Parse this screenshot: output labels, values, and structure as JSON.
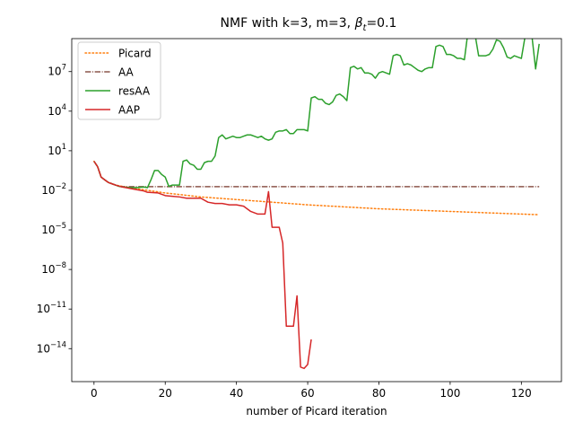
{
  "chart_data": {
    "type": "line",
    "title": "NMF with k=3, m=3,  βt=0.1",
    "title_parts": {
      "prefix": "NMF with k=3, m=3,  ",
      "symbol": "β",
      "subscript": "t",
      "suffix": "=0.1"
    },
    "xlabel": "number of Picard iteration",
    "ylabel": "",
    "xlim": [
      -6.25,
      131.25
    ],
    "ylim_exponent": [
      -16.5,
      9.5
    ],
    "yscale": "log",
    "xticks": [
      0,
      20,
      40,
      60,
      80,
      100,
      120
    ],
    "xtick_labels": [
      "0",
      "20",
      "40",
      "60",
      "80",
      "100",
      "120"
    ],
    "yticks_exponent": [
      -14,
      -11,
      -8,
      -5,
      -2,
      1,
      4,
      7
    ],
    "ytick_labels": [
      {
        "base": "10",
        "exp": "−14"
      },
      {
        "base": "10",
        "exp": "−11"
      },
      {
        "base": "10",
        "exp": "−8"
      },
      {
        "base": "10",
        "exp": "−5"
      },
      {
        "base": "10",
        "exp": "−2"
      },
      {
        "base": "10",
        "exp": "1"
      },
      {
        "base": "10",
        "exp": "4"
      },
      {
        "base": "10",
        "exp": "7"
      }
    ],
    "legend_position": "upper-left",
    "grid": false,
    "series": [
      {
        "name": "Picard",
        "color": "#ff7f0e",
        "style": "dotted",
        "log10_points": [
          [
            0,
            0.2
          ],
          [
            1,
            -0.2
          ],
          [
            2,
            -1.0
          ],
          [
            3,
            -1.2
          ],
          [
            4,
            -1.4
          ],
          [
            5,
            -1.5
          ],
          [
            6,
            -1.6
          ],
          [
            8,
            -1.7
          ],
          [
            10,
            -1.8
          ],
          [
            15,
            -2.0
          ],
          [
            20,
            -2.2
          ],
          [
            30,
            -2.5
          ],
          [
            40,
            -2.7
          ],
          [
            50,
            -2.9
          ],
          [
            60,
            -3.1
          ],
          [
            70,
            -3.25
          ],
          [
            80,
            -3.4
          ],
          [
            90,
            -3.5
          ],
          [
            100,
            -3.6
          ],
          [
            110,
            -3.7
          ],
          [
            120,
            -3.8
          ],
          [
            125,
            -3.85
          ]
        ]
      },
      {
        "name": "AA",
        "color": "#8c564b",
        "style": "dashdot",
        "log10_points": [
          [
            0,
            0.2
          ],
          [
            1,
            -0.2
          ],
          [
            2,
            -1.0
          ],
          [
            3,
            -1.2
          ],
          [
            4,
            -1.4
          ],
          [
            5,
            -1.5
          ],
          [
            6,
            -1.6
          ],
          [
            7,
            -1.7
          ],
          [
            8,
            -1.72
          ],
          [
            10,
            -1.72
          ],
          [
            20,
            -1.72
          ],
          [
            40,
            -1.72
          ],
          [
            60,
            -1.72
          ],
          [
            80,
            -1.72
          ],
          [
            100,
            -1.72
          ],
          [
            120,
            -1.72
          ],
          [
            125,
            -1.72
          ]
        ]
      },
      {
        "name": "resAA",
        "color": "#2ca02c",
        "style": "solid",
        "log10_points": [
          [
            0,
            0.2
          ],
          [
            1,
            -0.2
          ],
          [
            2,
            -1.0
          ],
          [
            3,
            -1.2
          ],
          [
            4,
            -1.4
          ],
          [
            5,
            -1.5
          ],
          [
            6,
            -1.6
          ],
          [
            7,
            -1.7
          ],
          [
            8,
            -1.75
          ],
          [
            10,
            -1.8
          ],
          [
            12,
            -1.8
          ],
          [
            14,
            -1.75
          ],
          [
            15,
            -1.8
          ],
          [
            16,
            -1.2
          ],
          [
            17,
            -0.5
          ],
          [
            18,
            -0.5
          ],
          [
            19,
            -0.8
          ],
          [
            20,
            -1.0
          ],
          [
            21,
            -1.7
          ],
          [
            22,
            -1.6
          ],
          [
            24,
            -1.6
          ],
          [
            25,
            0.2
          ],
          [
            26,
            0.3
          ],
          [
            27,
            0.0
          ],
          [
            28,
            -0.1
          ],
          [
            29,
            -0.4
          ],
          [
            30,
            -0.4
          ],
          [
            31,
            0.1
          ],
          [
            32,
            0.2
          ],
          [
            33,
            0.2
          ],
          [
            34,
            0.6
          ],
          [
            35,
            2.0
          ],
          [
            36,
            2.2
          ],
          [
            37,
            1.9
          ],
          [
            38,
            2.0
          ],
          [
            39,
            2.1
          ],
          [
            40,
            2.0
          ],
          [
            41,
            2.0
          ],
          [
            42,
            2.1
          ],
          [
            43,
            2.2
          ],
          [
            44,
            2.2
          ],
          [
            45,
            2.1
          ],
          [
            46,
            2.0
          ],
          [
            47,
            2.1
          ],
          [
            48,
            1.9
          ],
          [
            49,
            1.8
          ],
          [
            50,
            1.9
          ],
          [
            51,
            2.4
          ],
          [
            52,
            2.5
          ],
          [
            53,
            2.5
          ],
          [
            54,
            2.6
          ],
          [
            55,
            2.3
          ],
          [
            56,
            2.3
          ],
          [
            57,
            2.6
          ],
          [
            58,
            2.6
          ],
          [
            59,
            2.6
          ],
          [
            60,
            2.5
          ],
          [
            61,
            5.0
          ],
          [
            62,
            5.1
          ],
          [
            63,
            4.9
          ],
          [
            64,
            4.9
          ],
          [
            65,
            4.6
          ],
          [
            66,
            4.5
          ],
          [
            67,
            4.7
          ],
          [
            68,
            5.2
          ],
          [
            69,
            5.3
          ],
          [
            70,
            5.1
          ],
          [
            71,
            4.8
          ],
          [
            72,
            7.3
          ],
          [
            73,
            7.4
          ],
          [
            74,
            7.2
          ],
          [
            75,
            7.3
          ],
          [
            76,
            6.9
          ],
          [
            77,
            6.9
          ],
          [
            78,
            6.8
          ],
          [
            79,
            6.5
          ],
          [
            80,
            6.9
          ],
          [
            81,
            7.0
          ],
          [
            82,
            6.9
          ],
          [
            83,
            6.8
          ],
          [
            84,
            8.2
          ],
          [
            85,
            8.3
          ],
          [
            86,
            8.2
          ],
          [
            87,
            7.5
          ],
          [
            88,
            7.6
          ],
          [
            89,
            7.5
          ],
          [
            90,
            7.3
          ],
          [
            91,
            7.1
          ],
          [
            92,
            7.0
          ],
          [
            93,
            7.2
          ],
          [
            94,
            7.3
          ],
          [
            95,
            7.3
          ],
          [
            96,
            8.9
          ],
          [
            97,
            9.0
          ],
          [
            98,
            8.9
          ],
          [
            99,
            8.3
          ],
          [
            100,
            8.3
          ],
          [
            101,
            8.2
          ],
          [
            102,
            8.0
          ],
          [
            103,
            8.0
          ],
          [
            104,
            7.9
          ],
          [
            105,
            10.0
          ],
          [
            106,
            10.1
          ],
          [
            107,
            9.8
          ],
          [
            108,
            8.2
          ],
          [
            109,
            8.2
          ],
          [
            110,
            8.2
          ],
          [
            111,
            8.3
          ],
          [
            112,
            8.7
          ],
          [
            113,
            9.4
          ],
          [
            114,
            9.3
          ],
          [
            115,
            8.8
          ],
          [
            116,
            8.1
          ],
          [
            117,
            8.0
          ],
          [
            118,
            8.2
          ],
          [
            119,
            8.1
          ],
          [
            120,
            8.0
          ],
          [
            121,
            9.6
          ],
          [
            122,
            9.7
          ],
          [
            123,
            9.6
          ],
          [
            124,
            7.2
          ],
          [
            125,
            9.1
          ]
        ]
      },
      {
        "name": "AAP",
        "color": "#d62728",
        "style": "solid",
        "log10_points": [
          [
            0,
            0.2
          ],
          [
            1,
            -0.2
          ],
          [
            2,
            -1.0
          ],
          [
            3,
            -1.2
          ],
          [
            4,
            -1.4
          ],
          [
            5,
            -1.5
          ],
          [
            6,
            -1.6
          ],
          [
            8,
            -1.75
          ],
          [
            10,
            -1.85
          ],
          [
            12,
            -1.95
          ],
          [
            14,
            -2.05
          ],
          [
            15,
            -2.15
          ],
          [
            18,
            -2.2
          ],
          [
            20,
            -2.4
          ],
          [
            22,
            -2.45
          ],
          [
            24,
            -2.5
          ],
          [
            26,
            -2.6
          ],
          [
            28,
            -2.6
          ],
          [
            30,
            -2.6
          ],
          [
            32,
            -2.9
          ],
          [
            34,
            -3.0
          ],
          [
            36,
            -3.0
          ],
          [
            38,
            -3.1
          ],
          [
            40,
            -3.1
          ],
          [
            42,
            -3.2
          ],
          [
            44,
            -3.6
          ],
          [
            46,
            -3.8
          ],
          [
            48,
            -3.8
          ],
          [
            49,
            -2.1
          ],
          [
            50,
            -4.8
          ],
          [
            52,
            -4.8
          ],
          [
            53,
            -6.0
          ],
          [
            54,
            -12.3
          ],
          [
            56,
            -12.3
          ],
          [
            57,
            -10.0
          ],
          [
            58,
            -15.4
          ],
          [
            59,
            -15.5
          ],
          [
            60,
            -15.2
          ],
          [
            61,
            -13.3
          ]
        ]
      }
    ]
  }
}
